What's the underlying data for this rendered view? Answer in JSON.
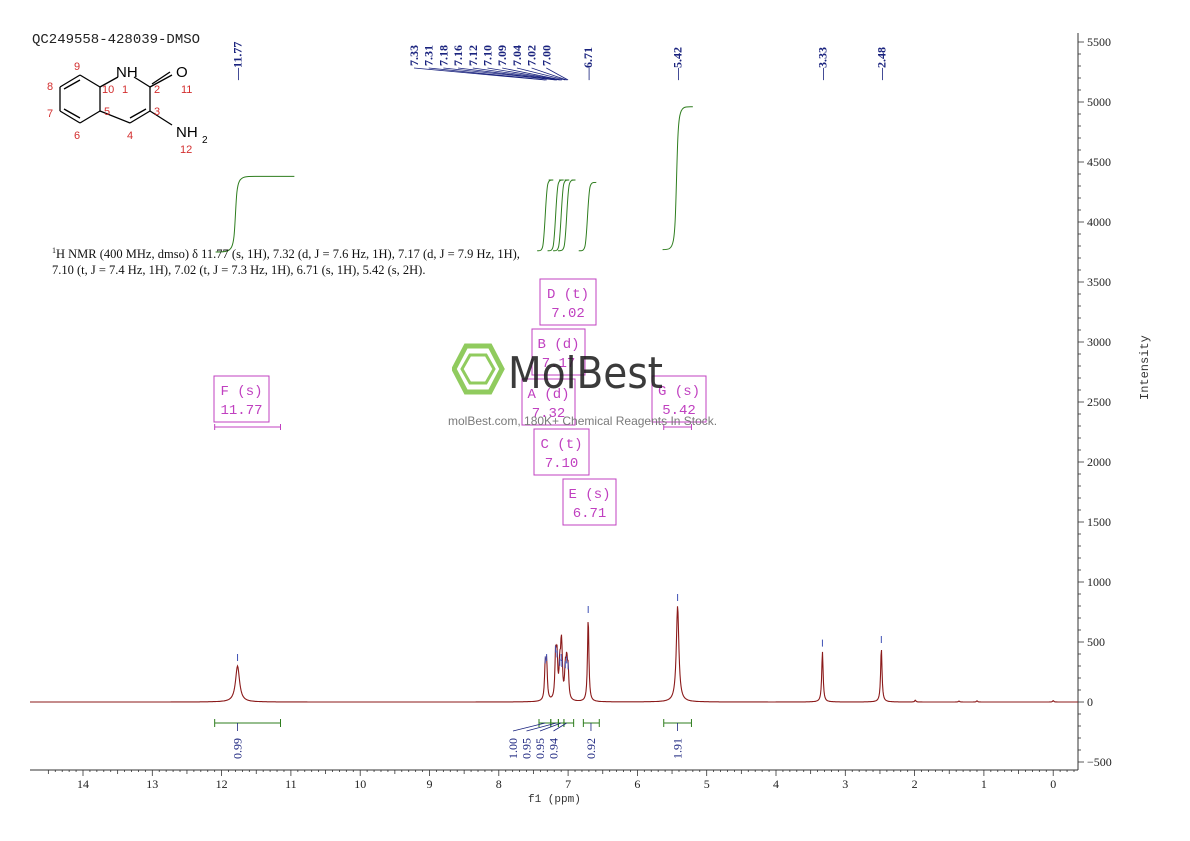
{
  "sample_id": "QC249558-428039-DMSO",
  "summary": {
    "line1_pre": "H NMR (400 MHz, dmso) δ 11.77 (s, 1H), 7.32 (d, J = 7.6 Hz, 1H), 7.17 (d, J = 7.9 Hz, 1H),",
    "nucleus_sup": "1",
    "line2": "7.10 (t, J = 7.4 Hz, 1H), 7.02 (t, J = 7.3 Hz, 1H), 6.71 (s, 1H), 5.42 (s, 2H)."
  },
  "molecule": {
    "atoms": {
      "nh": "NH",
      "o": "O",
      "nh2": "NH",
      "nh2_sub": "2"
    },
    "numbers": [
      "1",
      "2",
      "3",
      "4",
      "5",
      "6",
      "7",
      "8",
      "9",
      "10",
      "11",
      "12"
    ]
  },
  "watermark": {
    "brand": "MolBest",
    "tagline": "molBest.com, 180K+ Chemical Reagents In Stock."
  },
  "colors": {
    "spectrum": "#8b1a1a",
    "integral": "#2e7d1e",
    "peak_label": "#1a237e",
    "multiplet_box": "#c040c0",
    "axis": "#333333"
  },
  "chart_data": {
    "type": "line",
    "title": "",
    "xlabel": "f1 (ppm)",
    "ylabel": "Intensity",
    "xlim": [
      14.8,
      -0.4
    ],
    "ylim": [
      -550,
      5600
    ],
    "x_ticks": [
      14,
      13,
      12,
      11,
      10,
      9,
      8,
      7,
      6,
      5,
      4,
      3,
      2,
      1,
      0
    ],
    "y_ticks": [
      -500,
      0,
      500,
      1000,
      1500,
      2000,
      2500,
      3000,
      3500,
      4000,
      4500,
      5000,
      5500
    ],
    "peaks": [
      {
        "ppm": 11.77,
        "height": 300,
        "width": 0.035
      },
      {
        "ppm": 7.33,
        "height": 280,
        "width": 0.012
      },
      {
        "ppm": 7.31,
        "height": 300,
        "width": 0.012
      },
      {
        "ppm": 7.18,
        "height": 370,
        "width": 0.012
      },
      {
        "ppm": 7.16,
        "height": 330,
        "width": 0.012
      },
      {
        "ppm": 7.12,
        "height": 260,
        "width": 0.012
      },
      {
        "ppm": 7.1,
        "height": 300,
        "width": 0.012
      },
      {
        "ppm": 7.09,
        "height": 250,
        "width": 0.012
      },
      {
        "ppm": 7.04,
        "height": 240,
        "width": 0.012
      },
      {
        "ppm": 7.02,
        "height": 280,
        "width": 0.012
      },
      {
        "ppm": 7.0,
        "height": 230,
        "width": 0.012
      },
      {
        "ppm": 6.71,
        "height": 700,
        "width": 0.012
      },
      {
        "ppm": 5.42,
        "height": 800,
        "width": 0.022
      },
      {
        "ppm": 3.33,
        "height": 420,
        "width": 0.012
      },
      {
        "ppm": 2.48,
        "height": 450,
        "width": 0.012
      },
      {
        "ppm": 1.99,
        "height": 15,
        "width": 0.01
      },
      {
        "ppm": 1.36,
        "height": 8,
        "width": 0.01
      },
      {
        "ppm": 1.1,
        "height": 10,
        "width": 0.01
      },
      {
        "ppm": 0.0,
        "height": 12,
        "width": 0.01
      }
    ],
    "peak_labels": {
      "singles": [
        "11.77",
        "6.71",
        "5.42",
        "3.33",
        "2.48"
      ],
      "cluster": [
        "7.33",
        "7.31",
        "7.18",
        "7.16",
        "7.12",
        "7.10",
        "7.09",
        "7.04",
        "7.02",
        "7.00"
      ]
    },
    "multiplets": [
      {
        "label": "F (s)",
        "value": "11.77",
        "from": 12.1,
        "to": 11.15
      },
      {
        "label": "D (t)",
        "value": "7.02"
      },
      {
        "label": "B (d)",
        "value": "7.17"
      },
      {
        "label": "A (d)",
        "value": "7.32"
      },
      {
        "label": "G (s)",
        "value": "5.42",
        "from": 5.62,
        "to": 5.22
      },
      {
        "label": "C (t)",
        "value": "7.10"
      },
      {
        "label": "E (s)",
        "value": "6.71"
      }
    ],
    "integrals": [
      {
        "value": "0.99",
        "from": 12.1,
        "to": 11.15,
        "center": 11.77
      },
      {
        "value": "1.00",
        "from": 7.42,
        "to": 7.25,
        "center": 7.33
      },
      {
        "value": "0.95",
        "from": 7.25,
        "to": 7.14,
        "center": 7.17
      },
      {
        "value": "0.95",
        "from": 7.14,
        "to": 7.06,
        "center": 7.1
      },
      {
        "value": "0.94",
        "from": 7.06,
        "to": 6.92,
        "center": 7.02
      },
      {
        "value": "0.92",
        "from": 6.78,
        "to": 6.55,
        "center": 6.67
      },
      {
        "value": "1.91",
        "from": 5.62,
        "to": 5.22,
        "center": 5.42
      }
    ]
  }
}
